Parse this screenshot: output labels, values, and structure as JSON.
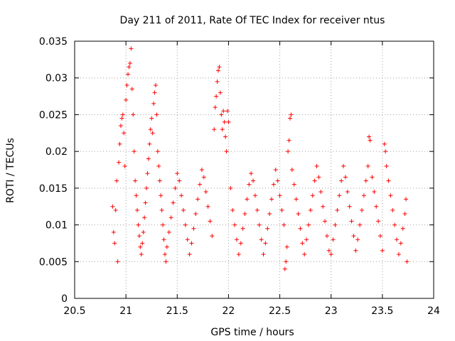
{
  "chart_data": {
    "type": "scatter",
    "title": "Day 211 of 2011, Rate Of TEC Index for receiver ntus",
    "xlabel": "GPS time / hours",
    "ylabel": "ROTI / TECUs",
    "xlim": [
      20.5,
      24
    ],
    "ylim": [
      0,
      0.035
    ],
    "xticks": [
      20.5,
      21,
      21.5,
      22,
      22.5,
      23,
      23.5,
      24
    ],
    "xtick_labels": [
      "20.5",
      "21",
      "21.5",
      "22",
      "22.5",
      "23",
      "23.5",
      "24"
    ],
    "yticks": [
      0,
      0.005,
      0.01,
      0.015,
      0.02,
      0.025,
      0.03,
      0.035
    ],
    "ytick_labels": [
      "0",
      "0.005",
      "0.01",
      "0.015",
      "0.02",
      "0.025",
      "0.03",
      "0.035"
    ],
    "grid": true,
    "marker": "+",
    "color": "#ff0000",
    "points": [
      [
        20.87,
        0.0125
      ],
      [
        20.88,
        0.009
      ],
      [
        20.89,
        0.0075
      ],
      [
        20.9,
        0.012
      ],
      [
        20.91,
        0.016
      ],
      [
        20.92,
        0.005
      ],
      [
        20.93,
        0.0185
      ],
      [
        20.94,
        0.021
      ],
      [
        20.95,
        0.0235
      ],
      [
        20.96,
        0.0245
      ],
      [
        20.97,
        0.025
      ],
      [
        20.98,
        0.0225
      ],
      [
        20.99,
        0.018
      ],
      [
        21.0,
        0.027
      ],
      [
        21.01,
        0.029
      ],
      [
        21.02,
        0.0305
      ],
      [
        21.03,
        0.0315
      ],
      [
        21.04,
        0.032
      ],
      [
        21.05,
        0.034
      ],
      [
        21.06,
        0.0285
      ],
      [
        21.07,
        0.025
      ],
      [
        21.08,
        0.02
      ],
      [
        21.09,
        0.016
      ],
      [
        21.1,
        0.014
      ],
      [
        21.11,
        0.012
      ],
      [
        21.12,
        0.01
      ],
      [
        21.13,
        0.0085
      ],
      [
        21.14,
        0.007
      ],
      [
        21.15,
        0.006
      ],
      [
        21.16,
        0.0075
      ],
      [
        21.17,
        0.009
      ],
      [
        21.18,
        0.011
      ],
      [
        21.19,
        0.013
      ],
      [
        21.2,
        0.015
      ],
      [
        21.21,
        0.017
      ],
      [
        21.22,
        0.019
      ],
      [
        21.23,
        0.021
      ],
      [
        21.24,
        0.023
      ],
      [
        21.25,
        0.0245
      ],
      [
        21.26,
        0.0225
      ],
      [
        21.27,
        0.0265
      ],
      [
        21.28,
        0.028
      ],
      [
        21.29,
        0.029
      ],
      [
        21.3,
        0.025
      ],
      [
        21.31,
        0.02
      ],
      [
        21.32,
        0.018
      ],
      [
        21.33,
        0.016
      ],
      [
        21.34,
        0.014
      ],
      [
        21.35,
        0.012
      ],
      [
        21.36,
        0.01
      ],
      [
        21.37,
        0.008
      ],
      [
        21.38,
        0.006
      ],
      [
        21.39,
        0.005
      ],
      [
        21.4,
        0.007
      ],
      [
        21.42,
        0.009
      ],
      [
        21.44,
        0.011
      ],
      [
        21.46,
        0.013
      ],
      [
        21.48,
        0.015
      ],
      [
        21.5,
        0.017
      ],
      [
        21.52,
        0.016
      ],
      [
        21.54,
        0.014
      ],
      [
        21.56,
        0.012
      ],
      [
        21.58,
        0.01
      ],
      [
        21.6,
        0.008
      ],
      [
        21.62,
        0.006
      ],
      [
        21.64,
        0.0075
      ],
      [
        21.66,
        0.0095
      ],
      [
        21.68,
        0.0115
      ],
      [
        21.7,
        0.0135
      ],
      [
        21.72,
        0.0155
      ],
      [
        21.74,
        0.0175
      ],
      [
        21.76,
        0.0165
      ],
      [
        21.78,
        0.0145
      ],
      [
        21.8,
        0.0125
      ],
      [
        21.82,
        0.0105
      ],
      [
        21.84,
        0.0085
      ],
      [
        21.86,
        0.023
      ],
      [
        21.87,
        0.026
      ],
      [
        21.88,
        0.0275
      ],
      [
        21.89,
        0.0295
      ],
      [
        21.9,
        0.031
      ],
      [
        21.91,
        0.0315
      ],
      [
        21.92,
        0.028
      ],
      [
        21.93,
        0.025
      ],
      [
        21.94,
        0.023
      ],
      [
        21.95,
        0.0255
      ],
      [
        21.96,
        0.024
      ],
      [
        21.97,
        0.022
      ],
      [
        21.98,
        0.02
      ],
      [
        21.99,
        0.0255
      ],
      [
        22.0,
        0.024
      ],
      [
        22.02,
        0.015
      ],
      [
        22.04,
        0.012
      ],
      [
        22.06,
        0.01
      ],
      [
        22.08,
        0.008
      ],
      [
        22.1,
        0.006
      ],
      [
        22.12,
        0.0075
      ],
      [
        22.14,
        0.0095
      ],
      [
        22.16,
        0.0115
      ],
      [
        22.18,
        0.0135
      ],
      [
        22.2,
        0.0155
      ],
      [
        22.22,
        0.017
      ],
      [
        22.24,
        0.016
      ],
      [
        22.26,
        0.014
      ],
      [
        22.28,
        0.012
      ],
      [
        22.3,
        0.01
      ],
      [
        22.32,
        0.008
      ],
      [
        22.34,
        0.006
      ],
      [
        22.36,
        0.0075
      ],
      [
        22.38,
        0.0095
      ],
      [
        22.4,
        0.0115
      ],
      [
        22.42,
        0.0135
      ],
      [
        22.44,
        0.0155
      ],
      [
        22.46,
        0.0175
      ],
      [
        22.48,
        0.016
      ],
      [
        22.5,
        0.014
      ],
      [
        22.52,
        0.012
      ],
      [
        22.54,
        0.01
      ],
      [
        22.55,
        0.004
      ],
      [
        22.56,
        0.005
      ],
      [
        22.57,
        0.007
      ],
      [
        22.58,
        0.02
      ],
      [
        22.59,
        0.0215
      ],
      [
        22.6,
        0.0245
      ],
      [
        22.61,
        0.025
      ],
      [
        22.62,
        0.0175
      ],
      [
        22.64,
        0.0155
      ],
      [
        22.66,
        0.0135
      ],
      [
        22.68,
        0.0115
      ],
      [
        22.7,
        0.0095
      ],
      [
        22.72,
        0.0075
      ],
      [
        22.74,
        0.006
      ],
      [
        22.76,
        0.008
      ],
      [
        22.78,
        0.01
      ],
      [
        22.8,
        0.012
      ],
      [
        22.82,
        0.014
      ],
      [
        22.84,
        0.016
      ],
      [
        22.86,
        0.018
      ],
      [
        22.88,
        0.0165
      ],
      [
        22.9,
        0.0145
      ],
      [
        22.92,
        0.0125
      ],
      [
        22.94,
        0.0105
      ],
      [
        22.96,
        0.0085
      ],
      [
        22.98,
        0.0065
      ],
      [
        23.0,
        0.006
      ],
      [
        23.02,
        0.008
      ],
      [
        23.04,
        0.01
      ],
      [
        23.06,
        0.012
      ],
      [
        23.08,
        0.014
      ],
      [
        23.1,
        0.016
      ],
      [
        23.12,
        0.018
      ],
      [
        23.14,
        0.0165
      ],
      [
        23.16,
        0.0145
      ],
      [
        23.18,
        0.0125
      ],
      [
        23.2,
        0.0105
      ],
      [
        23.22,
        0.0085
      ],
      [
        23.24,
        0.0065
      ],
      [
        23.26,
        0.008
      ],
      [
        23.28,
        0.01
      ],
      [
        23.3,
        0.012
      ],
      [
        23.32,
        0.014
      ],
      [
        23.34,
        0.016
      ],
      [
        23.36,
        0.018
      ],
      [
        23.37,
        0.022
      ],
      [
        23.38,
        0.0215
      ],
      [
        23.4,
        0.0165
      ],
      [
        23.42,
        0.0145
      ],
      [
        23.44,
        0.0125
      ],
      [
        23.46,
        0.0105
      ],
      [
        23.48,
        0.0085
      ],
      [
        23.5,
        0.0065
      ],
      [
        23.52,
        0.021
      ],
      [
        23.53,
        0.02
      ],
      [
        23.54,
        0.018
      ],
      [
        23.56,
        0.016
      ],
      [
        23.58,
        0.014
      ],
      [
        23.6,
        0.012
      ],
      [
        23.62,
        0.01
      ],
      [
        23.64,
        0.008
      ],
      [
        23.66,
        0.006
      ],
      [
        23.68,
        0.0075
      ],
      [
        23.7,
        0.0095
      ],
      [
        23.72,
        0.0115
      ],
      [
        23.73,
        0.0135
      ],
      [
        23.74,
        0.005
      ]
    ]
  }
}
